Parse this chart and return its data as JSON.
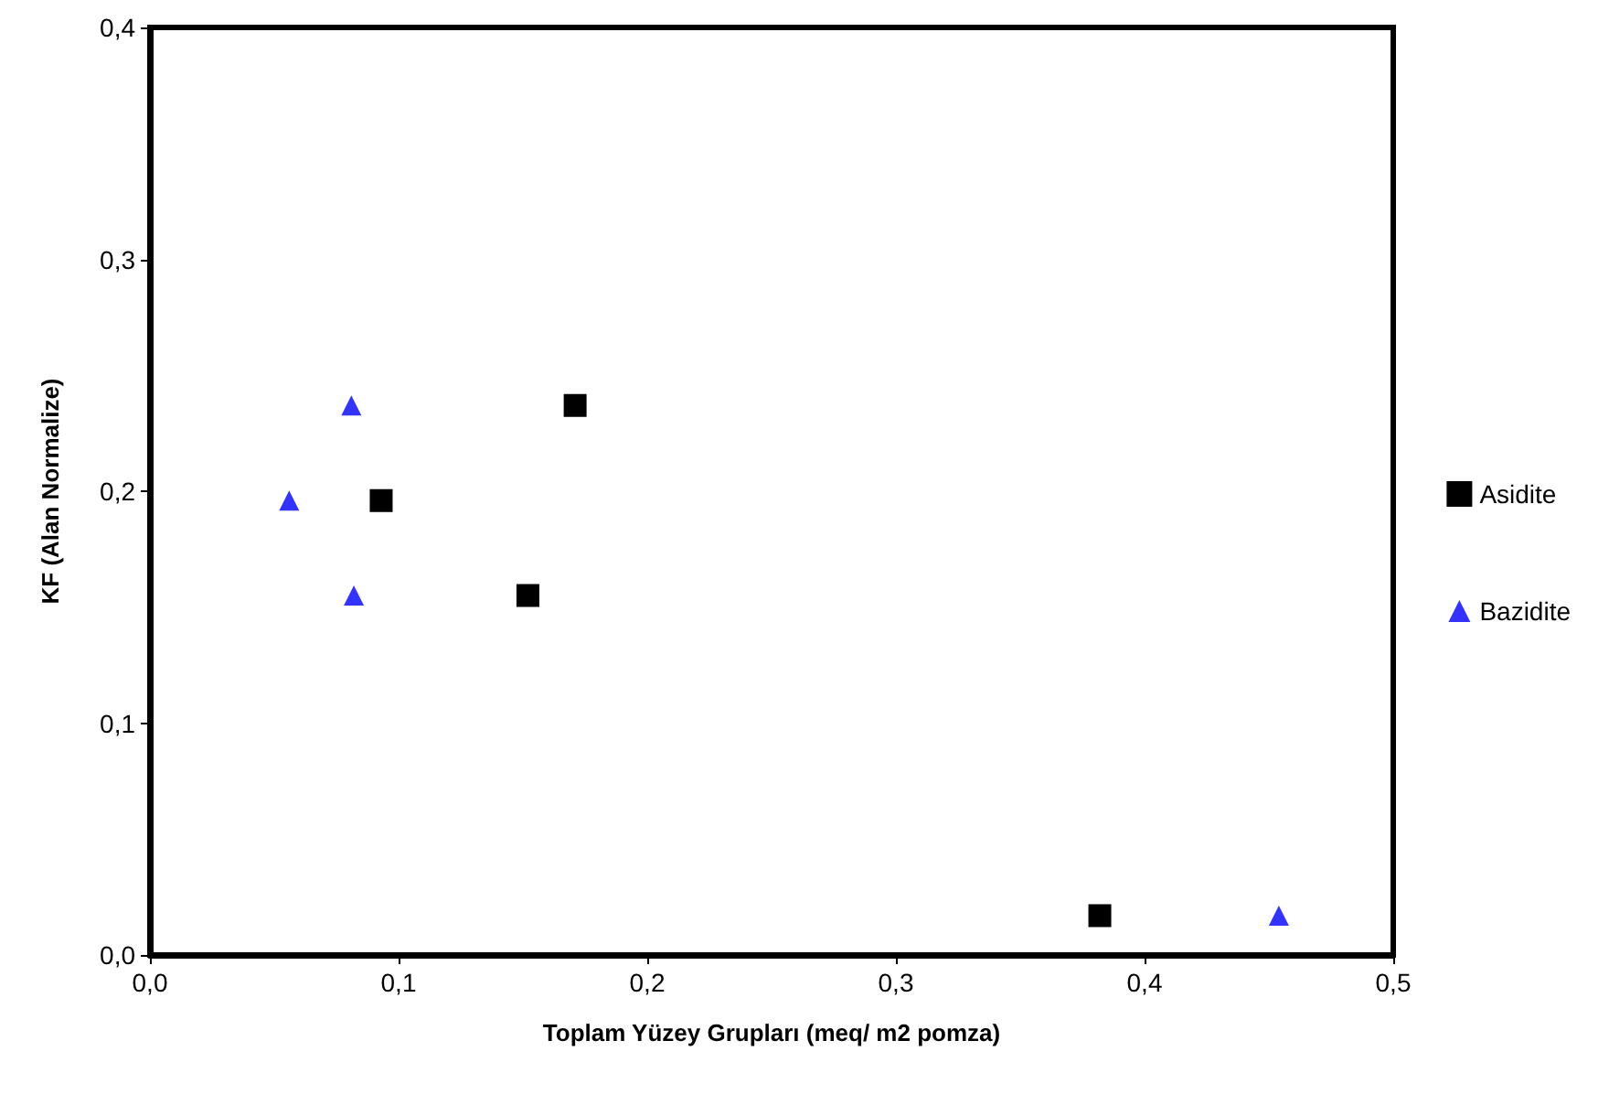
{
  "chart_data": {
    "type": "scatter",
    "xlabel": "Toplam Yüzey Grupları (meq/ m2 pomza)",
    "ylabel": "KF (Alan Normalize)",
    "xlim": [
      0,
      0.5
    ],
    "xticks": [
      {
        "value": 0,
        "label": "0,0"
      },
      {
        "value": 0.1,
        "label": "0,1"
      },
      {
        "value": 0.2,
        "label": "0,2"
      },
      {
        "value": 0.3,
        "label": "0,3"
      },
      {
        "value": 0.4,
        "label": "0,4"
      },
      {
        "value": 0.5,
        "label": "0,5"
      }
    ],
    "ylim": [
      0,
      0.4
    ],
    "yticks": [
      {
        "value": 0,
        "label": "0,0"
      },
      {
        "value": 0.1,
        "label": "0,1"
      },
      {
        "value": 0.2,
        "label": "0,2"
      },
      {
        "value": 0.3,
        "label": "0,3"
      },
      {
        "value": 0.4,
        "label": "0,4"
      }
    ],
    "grid": false,
    "legend": "right",
    "series": [
      {
        "name": "Asidite",
        "color": "#000000",
        "marker": "square",
        "x": [
          0.093,
          0.171,
          0.152,
          0.382
        ],
        "values": [
          0.196,
          0.237,
          0.155,
          0.017
        ]
      },
      {
        "name": "Bazidite",
        "color": "#0000ff",
        "marker": "triangle",
        "x": [
          0.081,
          0.056,
          0.082,
          0.454
        ],
        "values": [
          0.237,
          0.196,
          0.155,
          0.017
        ]
      }
    ]
  }
}
